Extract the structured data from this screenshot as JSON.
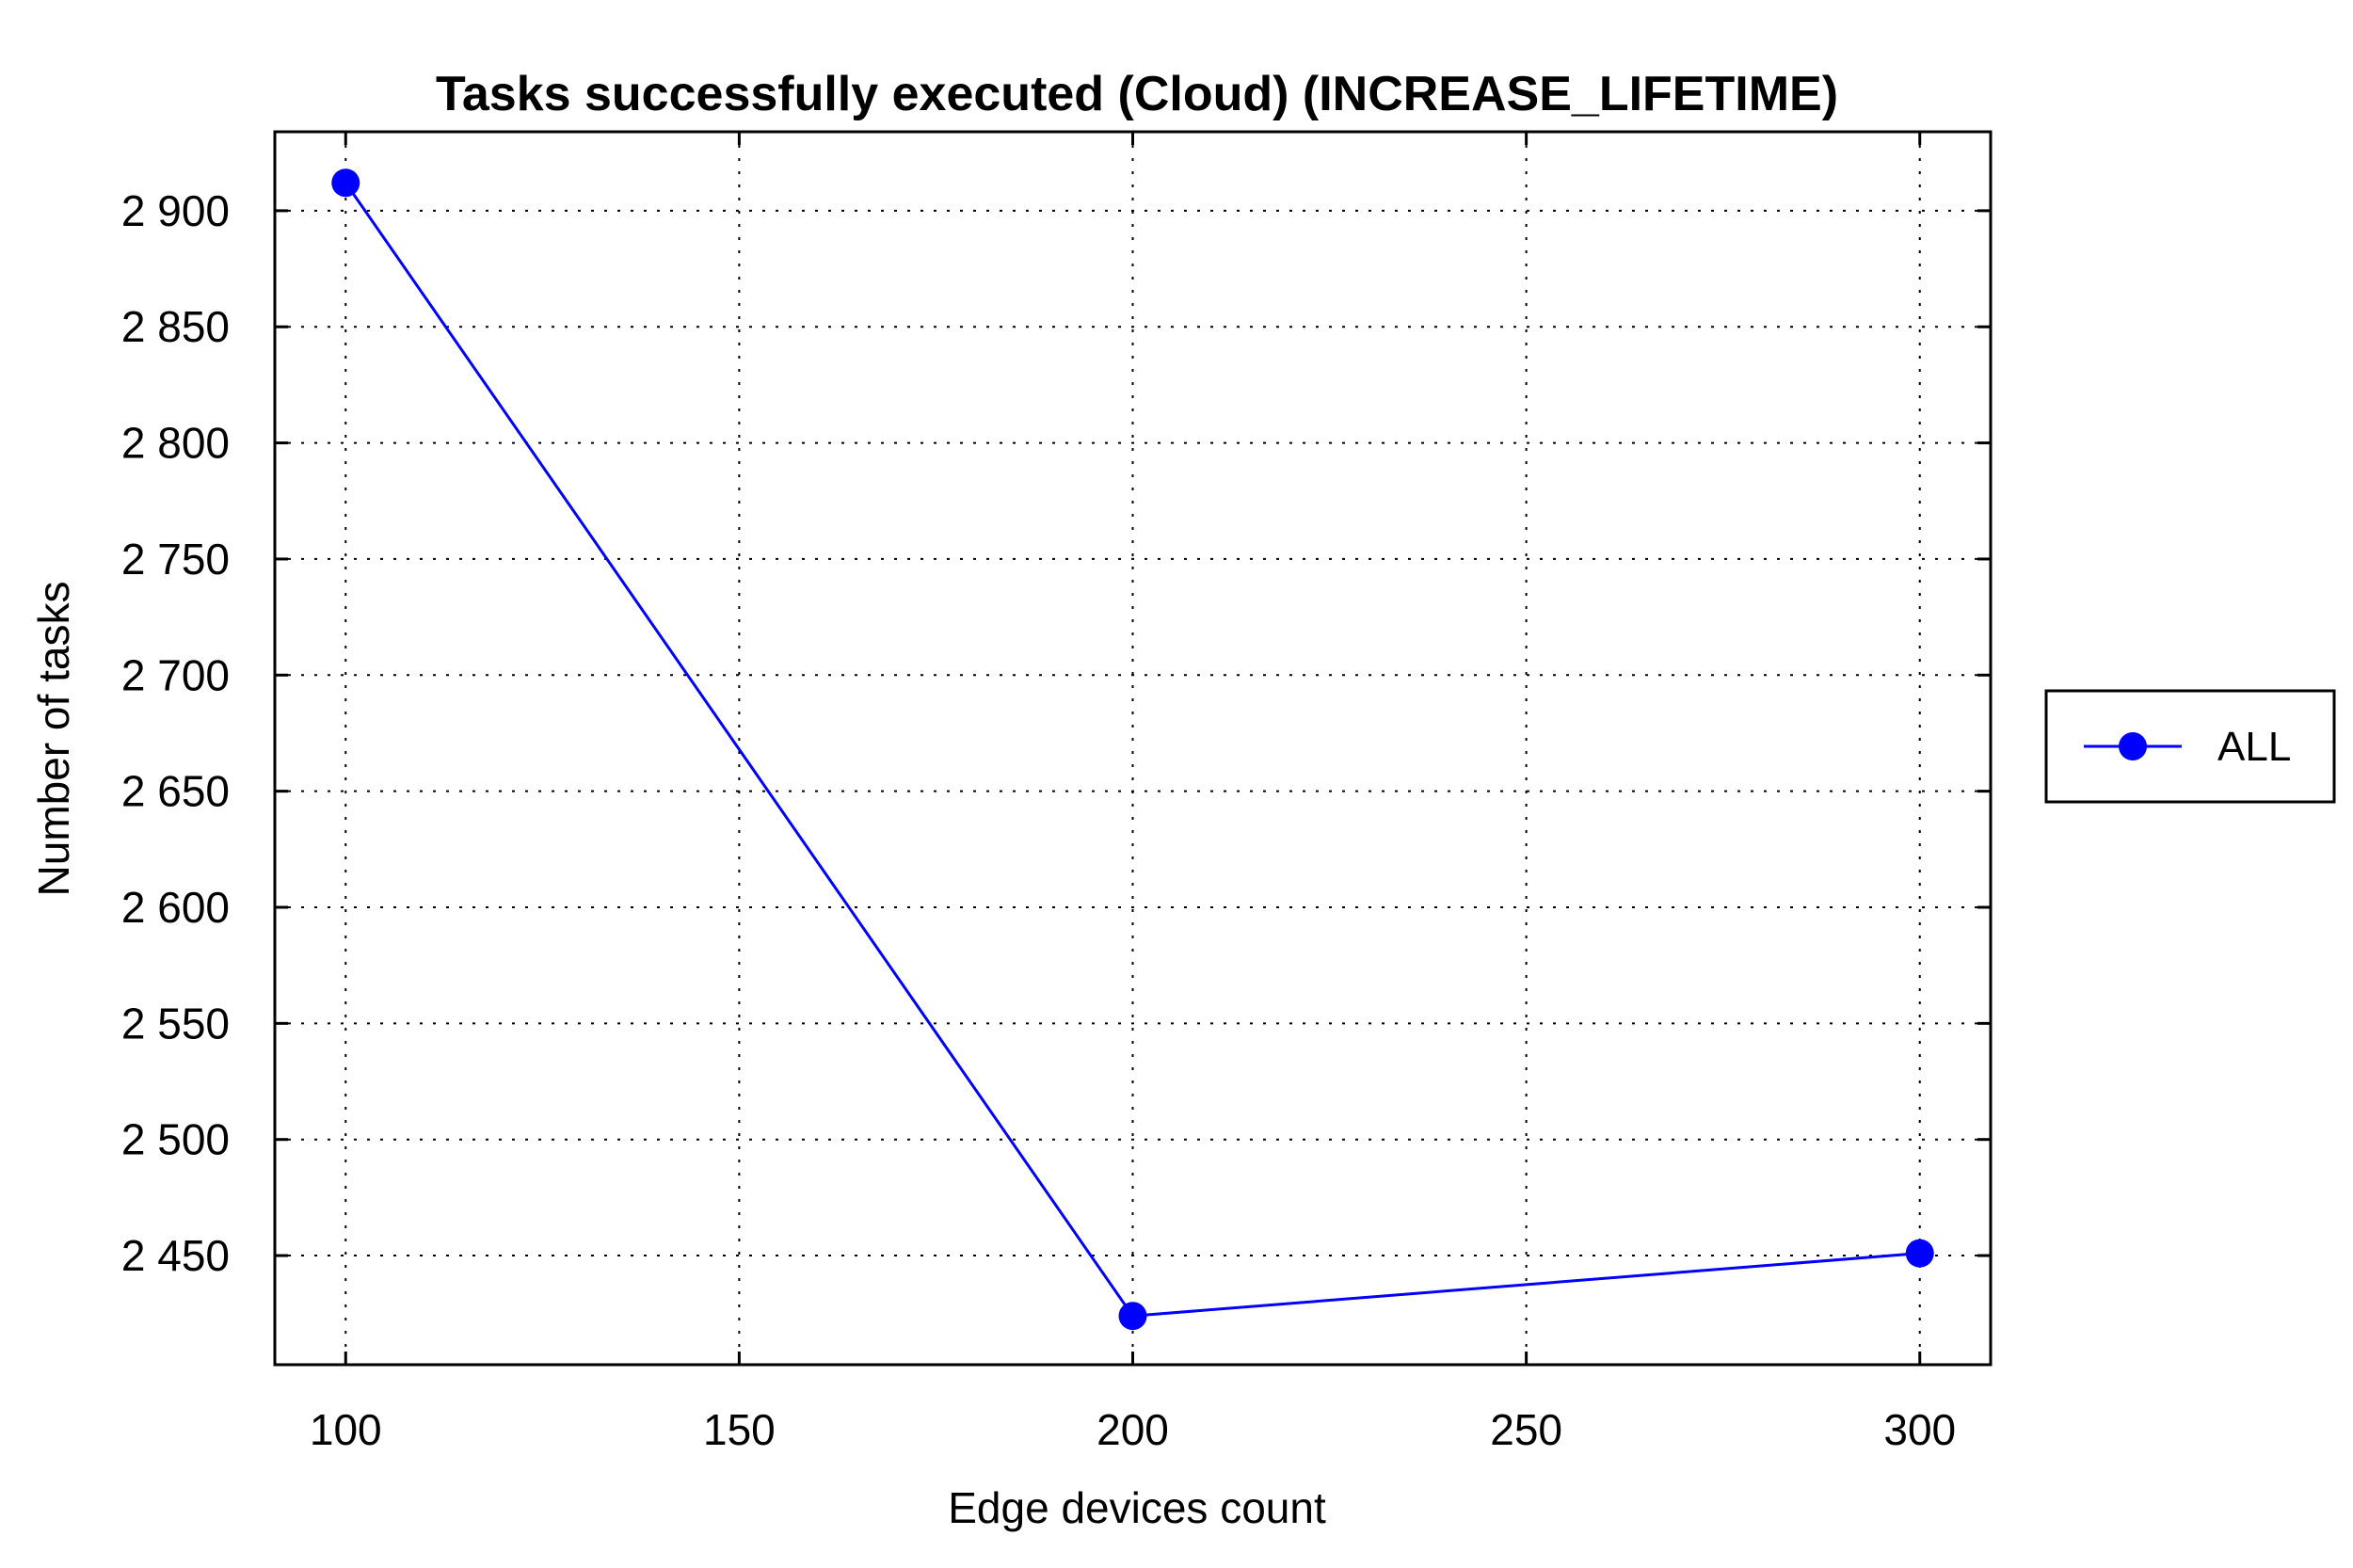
{
  "chart_data": {
    "type": "line",
    "title": "Tasks successfully executed (Cloud) (INCREASE_LIFETIME)",
    "xlabel": "Edge devices count",
    "ylabel": "Number of tasks",
    "x": [
      100,
      200,
      300
    ],
    "series": [
      {
        "name": "ALL",
        "values": [
          2912,
          2424,
          2451
        ],
        "color": "#0000ff",
        "marker": "circle"
      }
    ],
    "xlim": [
      91,
      309
    ],
    "ylim": [
      2403,
      2934
    ],
    "xticks": [
      100,
      150,
      200,
      250,
      300
    ],
    "xtick_labels": [
      "100",
      "150",
      "200",
      "250",
      "300"
    ],
    "yticks": [
      2450,
      2500,
      2550,
      2600,
      2650,
      2700,
      2750,
      2800,
      2850,
      2900
    ],
    "ytick_labels": [
      "2 450",
      "2 500",
      "2 550",
      "2 600",
      "2 650",
      "2 700",
      "2 750",
      "2 800",
      "2 850",
      "2 900"
    ],
    "grid": true,
    "grid_style": "dotted",
    "legend_position": "right"
  }
}
